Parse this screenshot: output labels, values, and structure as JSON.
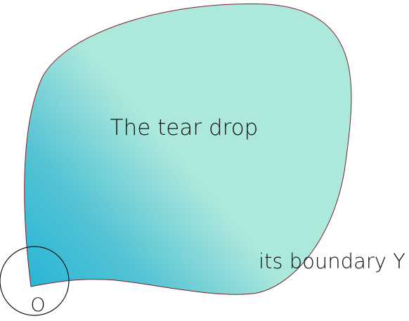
{
  "diagram": {
    "region_label": "The tear drop",
    "boundary_label": "its boundary Y",
    "point_label": "O"
  },
  "colors": {
    "fill_light": "#ade8dc",
    "fill_dark": "#2ab6d6",
    "outline": "#7a1f2b",
    "circle": "#111111"
  }
}
